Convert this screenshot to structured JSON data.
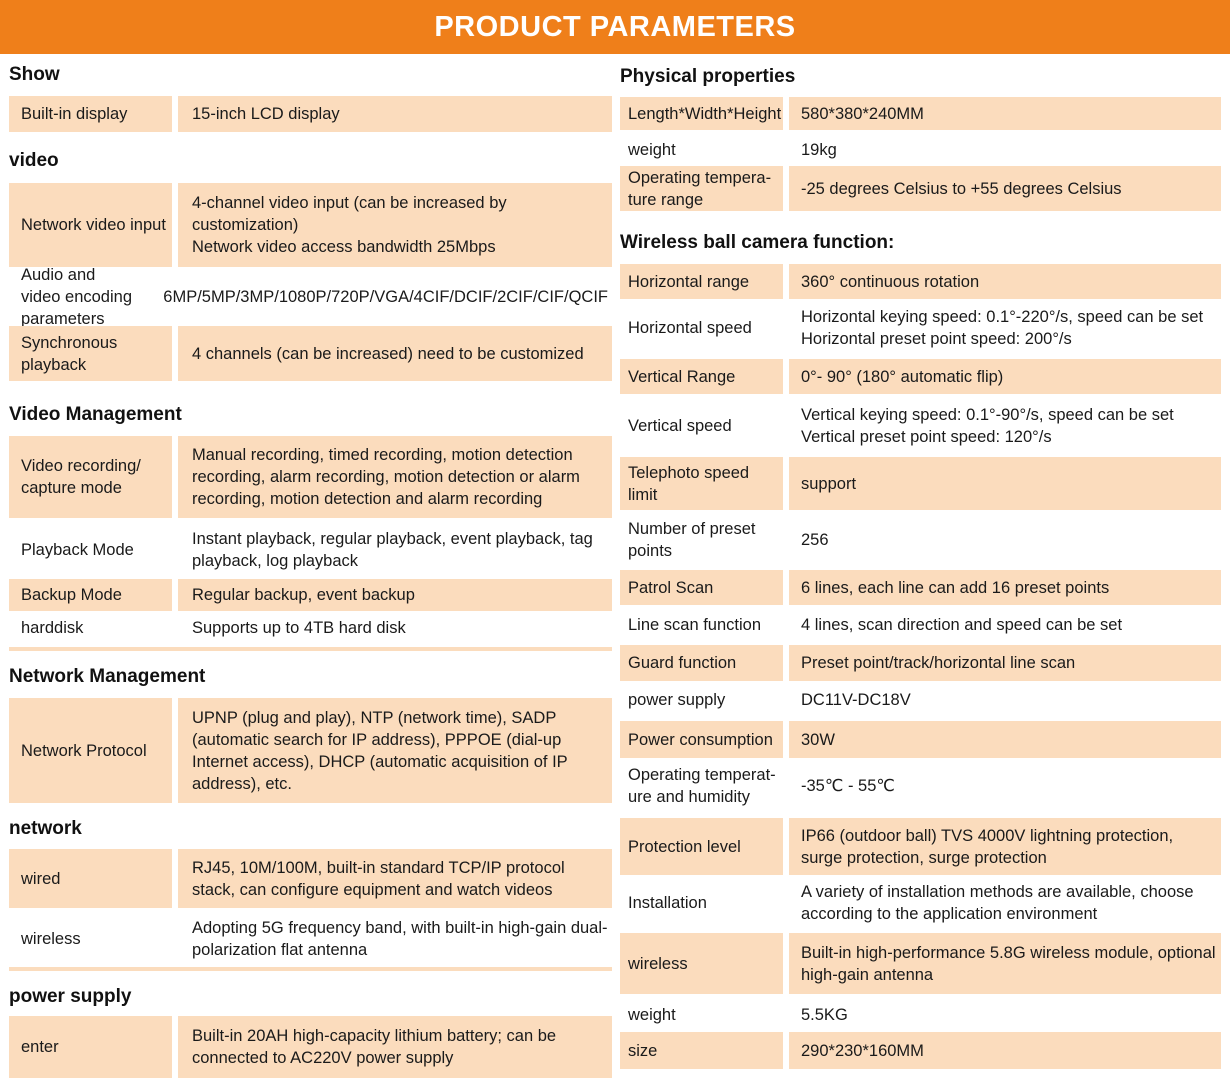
{
  "title": "PRODUCT PARAMETERS",
  "colors": {
    "banner": "#ef7f1a",
    "row_shade": "#fbdcbd"
  },
  "left": [
    {
      "title": "Show",
      "rows": [
        {
          "label": "Built-in display",
          "value": [
            "15-inch LCD display"
          ]
        }
      ]
    },
    {
      "title": "video",
      "rows": [
        {
          "label": "Network video input",
          "value": [
            "4-channel video input (can be increased by customization)",
            "Network video access bandwidth 25Mbps"
          ]
        },
        {
          "label": "Audio and video encoding parameters",
          "value": [
            "6MP/5MP/3MP/1080P/720P/VGA/4CIF/DCIF/2CIF/CIF/QCIF"
          ]
        },
        {
          "label": "Synchronous playback",
          "value": [
            "4 channels (can be increased) need to be customized"
          ]
        }
      ]
    },
    {
      "title": "Video Management",
      "rows": [
        {
          "label": "Video recording/ capture mode",
          "value": [
            "Manual recording, timed recording, motion detection recording, alarm recording, motion detection or alarm recording, motion detection and alarm recording"
          ]
        },
        {
          "label": "Playback Mode",
          "value": [
            "Instant playback, regular playback, event playback, tag playback, log playback"
          ]
        },
        {
          "label": "Backup Mode",
          "value": [
            "Regular backup, event backup"
          ]
        },
        {
          "label": "harddisk",
          "value": [
            "Supports up to 4TB hard disk"
          ]
        }
      ]
    },
    {
      "title": "Network Management",
      "rows": [
        {
          "label": "Network Protocol",
          "value": [
            "UPNP (plug and play), NTP (network time), SADP (automatic search for IP address), PPPOE (dial-up Internet access), DHCP (automatic acquisition of IP address), etc."
          ]
        }
      ]
    },
    {
      "title": "network",
      "rows": [
        {
          "label": "wired",
          "value": [
            "RJ45, 10M/100M, built-in standard TCP/IP protocol stack, can configure equipment and watch videos"
          ]
        },
        {
          "label": "wireless",
          "value": [
            "Adopting 5G frequency band, with built-in high-gain dual-polarization flat antenna"
          ]
        }
      ]
    },
    {
      "title": "power supply",
      "rows": [
        {
          "label": "enter",
          "value": [
            "Built-in 20AH high-capacity lithium battery; can be connected to AC220V power supply"
          ]
        }
      ]
    }
  ],
  "right": [
    {
      "title": "Physical properties",
      "rows": [
        {
          "label": "Length*Width*Height",
          "value": [
            "580*380*240MM"
          ]
        },
        {
          "label": "weight",
          "value": [
            "19kg"
          ]
        },
        {
          "label": "Operating tempera-ture range",
          "value": [
            "-25 degrees Celsius to +55 degrees Celsius"
          ]
        }
      ]
    },
    {
      "title": "Wireless ball camera function:",
      "rows": [
        {
          "label": "Horizontal range",
          "value": [
            "360° continuous rotation"
          ]
        },
        {
          "label": "Horizontal speed",
          "value": [
            "Horizontal keying speed: 0.1°-220°/s, speed can be set Horizontal preset point speed: 200°/s"
          ]
        },
        {
          "label": "Vertical Range",
          "value": [
            "0°- 90° (180° automatic flip)"
          ]
        },
        {
          "label": "Vertical speed",
          "value": [
            "Vertical keying speed: 0.1°-90°/s, speed can be set",
            "Vertical preset point speed: 120°/s"
          ]
        },
        {
          "label": "Telephoto speed limit",
          "value": [
            "support"
          ]
        },
        {
          "label": "Number of preset points",
          "value": [
            "256"
          ]
        },
        {
          "label": "Patrol Scan",
          "value": [
            "6 lines, each line can add 16 preset points"
          ]
        },
        {
          "label": "Line scan function",
          "value": [
            "4 lines, scan direction and speed can be set"
          ]
        },
        {
          "label": "Guard function",
          "value": [
            "Preset point/track/horizontal line scan"
          ]
        },
        {
          "label": "power supply",
          "value": [
            "DC11V-DC18V"
          ]
        },
        {
          "label": "Power consumption",
          "value": [
            "30W"
          ]
        },
        {
          "label": "Operating temperat-ure and humidity",
          "value": [
            "-35℃ - 55℃"
          ]
        },
        {
          "label": "Protection level",
          "value": [
            "IP66 (outdoor ball) TVS 4000V lightning protection, surge protection, surge protection"
          ]
        },
        {
          "label": "Installation",
          "value": [
            "A variety of installation methods are available, choose according to the application environment"
          ]
        },
        {
          "label": "wireless",
          "value": [
            "Built-in high-performance 5.8G wireless module, optional high-gain antenna"
          ]
        },
        {
          "label": "weight",
          "value": [
            "5.5KG"
          ]
        },
        {
          "label": "size",
          "value": [
            "290*230*160MM"
          ]
        }
      ]
    }
  ]
}
